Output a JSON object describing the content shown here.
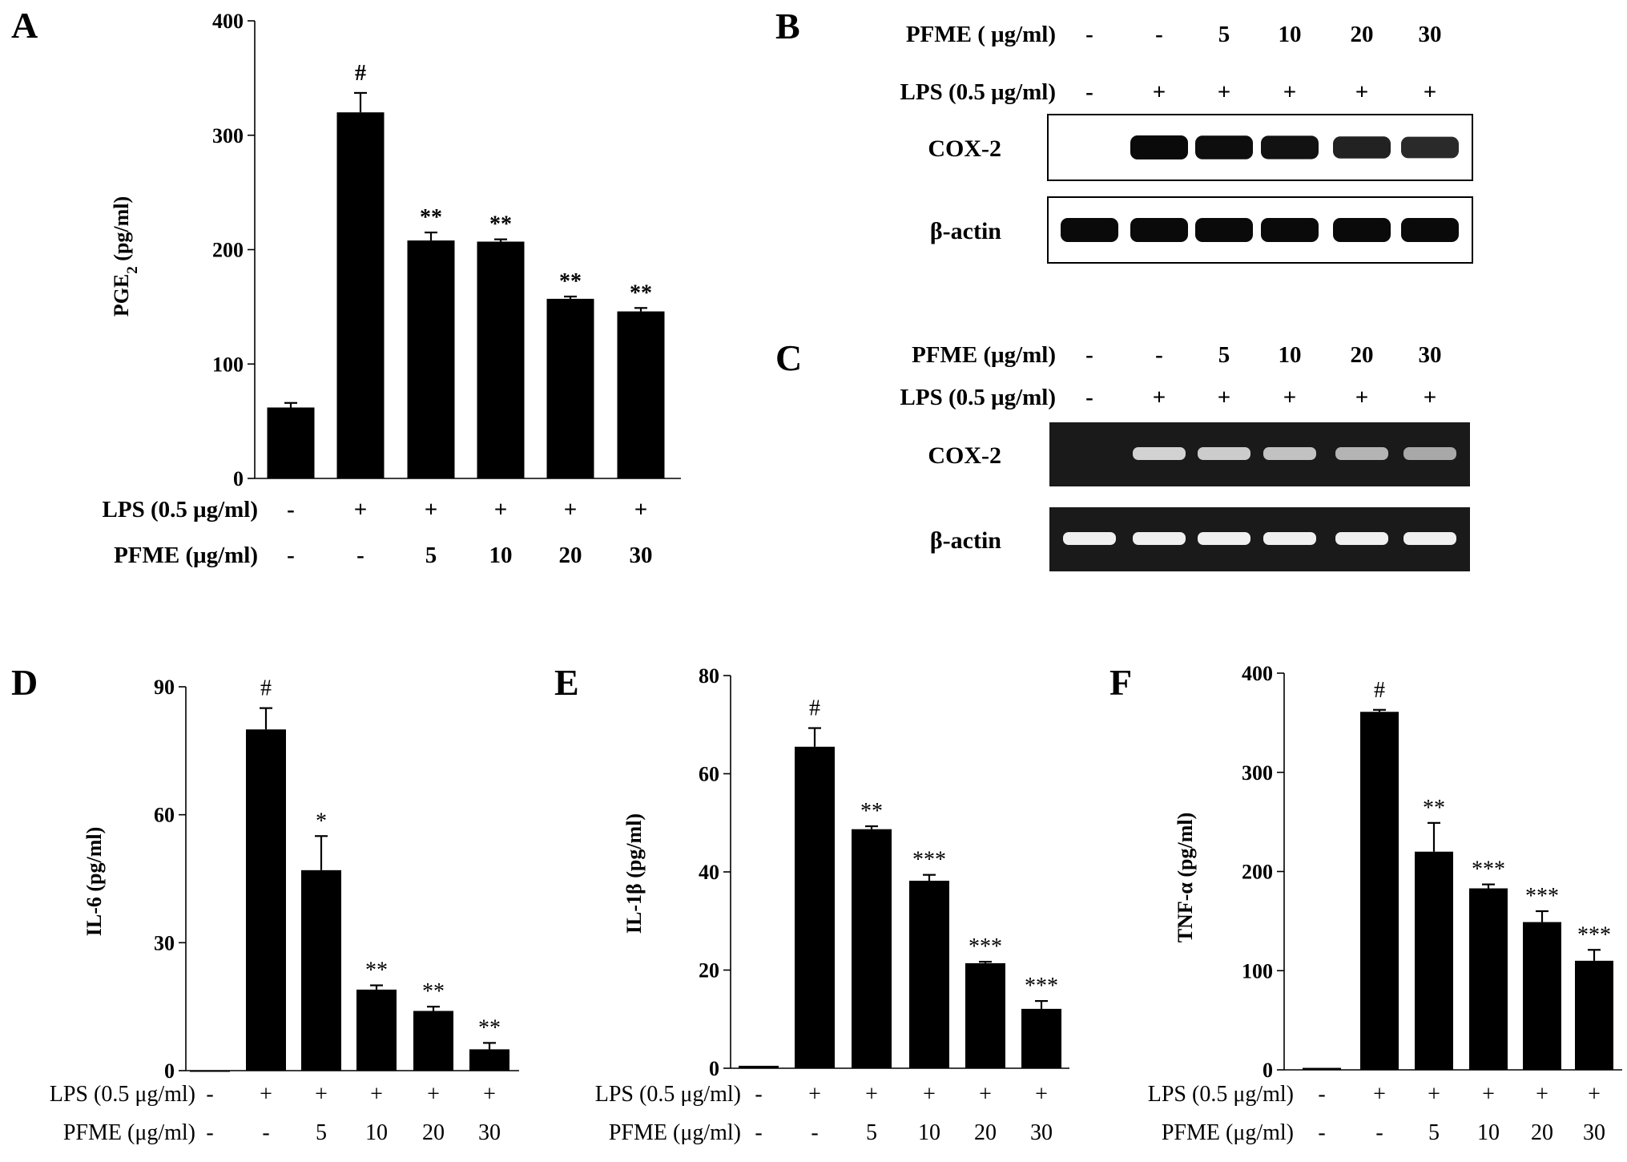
{
  "chart_data": [
    {
      "panel": "A",
      "type": "bar",
      "ylabel": "PGE2 (pg/ml)",
      "ylim": [
        0,
        400
      ],
      "yticks": [
        0,
        100,
        200,
        300,
        400
      ],
      "values": [
        62,
        320,
        208,
        207,
        157,
        146
      ],
      "errors": [
        4,
        17,
        7,
        2,
        2,
        3
      ],
      "significance": [
        "",
        "#",
        "**",
        "**",
        "**",
        "**"
      ],
      "conditions": [
        {
          "label": "LPS (0.5 μg/ml)",
          "values": [
            "-",
            "+",
            "+",
            "+",
            "+",
            "+"
          ]
        },
        {
          "label": "PFME (μg/ml)",
          "values": [
            "-",
            "-",
            "5",
            "10",
            "20",
            "30"
          ]
        }
      ]
    },
    {
      "panel": "D",
      "type": "bar",
      "ylabel": "IL-6 (pg/ml)",
      "ylim": [
        0,
        90
      ],
      "yticks": [
        0,
        30,
        60,
        90
      ],
      "values": [
        0,
        80,
        47,
        19,
        14,
        5
      ],
      "errors": [
        0,
        5,
        8,
        1,
        1,
        1.5
      ],
      "significance": [
        "",
        "#",
        "*",
        "**",
        "**",
        "**"
      ],
      "conditions": [
        {
          "label": "LPS (0.5 μg/ml)",
          "values": [
            "-",
            "+",
            "+",
            "+",
            "+",
            "+"
          ]
        },
        {
          "label": "PFME (μg/ml)",
          "values": [
            "-",
            "-",
            "5",
            "10",
            "20",
            "30"
          ]
        }
      ]
    },
    {
      "panel": "E",
      "type": "bar",
      "ylabel": "IL-1β (pg/ml)",
      "ylim": [
        0,
        80
      ],
      "yticks": [
        0,
        20,
        40,
        60,
        80
      ],
      "values": [
        0.5,
        65.5,
        48.7,
        38.2,
        21.4,
        12.1
      ],
      "errors": [
        0,
        3.8,
        0.6,
        1.2,
        0.3,
        1.6
      ],
      "significance": [
        "",
        "#",
        "**",
        "***",
        "***",
        "***"
      ],
      "conditions": [
        {
          "label": "LPS (0.5 μg/ml)",
          "values": [
            "-",
            "+",
            "+",
            "+",
            "+",
            "+"
          ]
        },
        {
          "label": "PFME (μg/ml)",
          "values": [
            "-",
            "-",
            "5",
            "10",
            "20",
            "30"
          ]
        }
      ]
    },
    {
      "panel": "F",
      "type": "bar",
      "ylabel": "TNF-α (pg/ml)",
      "ylim": [
        0,
        400
      ],
      "yticks": [
        0,
        100,
        200,
        300,
        400
      ],
      "values": [
        2,
        361,
        220,
        183,
        149,
        110
      ],
      "errors": [
        0,
        2,
        29,
        4,
        11,
        11
      ],
      "significance": [
        "",
        "#",
        "**",
        "***",
        "***",
        "***"
      ],
      "conditions": [
        {
          "label": "LPS (0.5 μg/ml)",
          "values": [
            "-",
            "+",
            "+",
            "+",
            "+",
            "+"
          ]
        },
        {
          "label": "PFME (μg/ml)",
          "values": [
            "-",
            "-",
            "5",
            "10",
            "20",
            "30"
          ]
        }
      ]
    }
  ],
  "blots": [
    {
      "panel": "B",
      "style": "western",
      "conditions": [
        {
          "label": "PFME ( μg/ml)",
          "values": [
            "-",
            "-",
            "5",
            "10",
            "20",
            "30"
          ]
        },
        {
          "label": "LPS (0.5 μg/ml)",
          "values": [
            "-",
            "+",
            "+",
            "+",
            "+",
            "+"
          ]
        }
      ],
      "rows": [
        {
          "label": "COX-2",
          "intensities": [
            0,
            1.0,
            0.95,
            0.9,
            0.7,
            0.6
          ]
        },
        {
          "label": "β-actin",
          "intensities": [
            1,
            1,
            1,
            1,
            1,
            1
          ]
        }
      ]
    },
    {
      "panel": "C",
      "style": "gel",
      "conditions": [
        {
          "label": "PFME (μg/ml)",
          "values": [
            "-",
            "-",
            "5",
            "10",
            "20",
            "30"
          ]
        },
        {
          "label": "LPS (0.5 μg/ml)",
          "values": [
            "-",
            "+",
            "+",
            "+",
            "+",
            "+"
          ]
        }
      ],
      "rows": [
        {
          "label": "COX-2",
          "intensities": [
            0,
            0.75,
            0.7,
            0.62,
            0.5,
            0.4
          ]
        },
        {
          "label": "β-actin",
          "intensities": [
            1,
            1,
            1,
            1,
            1,
            1
          ]
        }
      ]
    }
  ]
}
